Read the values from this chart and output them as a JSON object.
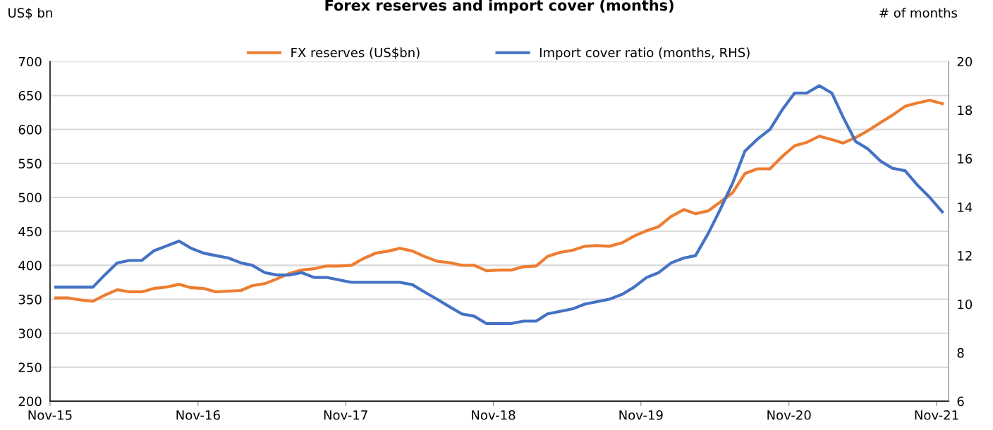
{
  "chart_data": {
    "type": "line",
    "title": "Forex reserves and import cover (months)",
    "ylabel": "US$ bn",
    "y2label": "# of months",
    "x": [
      "2015-11-15",
      "2015-12-15",
      "2016-01-15",
      "2016-02-15",
      "2016-03-15",
      "2016-04-15",
      "2016-05-15",
      "2016-06-15",
      "2016-07-15",
      "2016-08-15",
      "2016-09-15",
      "2016-10-15",
      "2016-11-15",
      "2016-12-15",
      "2017-01-15",
      "2017-02-15",
      "2017-03-15",
      "2017-04-15",
      "2017-05-15",
      "2017-06-15",
      "2017-07-15",
      "2017-08-15",
      "2017-09-15",
      "2017-10-15",
      "2017-11-15",
      "2017-12-15",
      "2018-01-15",
      "2018-02-15",
      "2018-03-15",
      "2018-04-15",
      "2018-05-15",
      "2018-06-15",
      "2018-07-15",
      "2018-08-15",
      "2018-09-15",
      "2018-10-15",
      "2018-11-15",
      "2018-12-15",
      "2019-01-15",
      "2019-02-15",
      "2019-03-15",
      "2019-04-15",
      "2019-05-15",
      "2019-06-15",
      "2019-07-15",
      "2019-08-15",
      "2019-09-15",
      "2019-10-15",
      "2019-11-15",
      "2019-12-15",
      "2020-01-15",
      "2020-02-15",
      "2020-03-15",
      "2020-04-15",
      "2020-05-15",
      "2020-06-15",
      "2020-07-15",
      "2020-08-15",
      "2020-09-15",
      "2020-10-15",
      "2020-11-15",
      "2020-12-15",
      "2021-01-15",
      "2021-02-15",
      "2021-03-15",
      "2021-04-15",
      "2021-05-15",
      "2021-06-15",
      "2021-07-15",
      "2021-08-15",
      "2021-09-15",
      "2021-10-15",
      "2021-11-15"
    ],
    "series": [
      {
        "name": "FX reserves (US$bn)",
        "color": "#ed7d31",
        "values": [
          352,
          352,
          349,
          347,
          356,
          364,
          361,
          361,
          366,
          368,
          372,
          367,
          366,
          361,
          362,
          363,
          370,
          373,
          380,
          388,
          393,
          395,
          399,
          399,
          400,
          410,
          418,
          421,
          425,
          421,
          413,
          406,
          404,
          400,
          400,
          392,
          393,
          393,
          398,
          399,
          413,
          419,
          422,
          428,
          429,
          428,
          433,
          443,
          451,
          457,
          472,
          482,
          476,
          480,
          493,
          507,
          535,
          542,
          542,
          560,
          576,
          581,
          590,
          585,
          580,
          588,
          598,
          610,
          621,
          634,
          639,
          643,
          638
        ]
      },
      {
        "name": "Import cover ratio (months, RHS)",
        "color": "#4472c4",
        "axis": "y2",
        "values": [
          10.7,
          10.7,
          10.7,
          10.7,
          11.2,
          11.7,
          11.8,
          11.8,
          12.2,
          12.4,
          12.6,
          12.3,
          12.1,
          12.0,
          11.9,
          11.7,
          11.6,
          11.3,
          11.2,
          11.2,
          11.3,
          11.1,
          11.1,
          11.0,
          10.9,
          10.9,
          10.9,
          10.9,
          10.9,
          10.8,
          10.5,
          10.2,
          9.9,
          9.6,
          9.5,
          9.2,
          9.2,
          9.2,
          9.3,
          9.3,
          9.6,
          9.7,
          9.8,
          10.0,
          10.1,
          10.2,
          10.4,
          10.7,
          11.1,
          11.3,
          11.7,
          11.9,
          12.0,
          12.9,
          13.9,
          15.0,
          16.3,
          16.8,
          17.2,
          18.0,
          18.7,
          18.7,
          19.0,
          18.7,
          17.7,
          16.7,
          16.4,
          15.9,
          15.6,
          15.5,
          14.9,
          14.4,
          13.8
        ]
      }
    ],
    "xlim": [
      "2015-11-01",
      "2021-12-01"
    ],
    "xticks": [
      {
        "value": "2015-11-01",
        "label": "Nov-15"
      },
      {
        "value": "2016-11-01",
        "label": "Nov-16"
      },
      {
        "value": "2017-11-01",
        "label": "Nov-17"
      },
      {
        "value": "2018-11-01",
        "label": "Nov-18"
      },
      {
        "value": "2019-11-01",
        "label": "Nov-19"
      },
      {
        "value": "2020-11-01",
        "label": "Nov-20"
      },
      {
        "value": "2021-11-01",
        "label": "Nov-21"
      }
    ],
    "ylim": [
      200,
      700
    ],
    "yticks": [
      200,
      250,
      300,
      350,
      400,
      450,
      500,
      550,
      600,
      650,
      700
    ],
    "y2lim": [
      6,
      20
    ],
    "y2ticks": [
      6,
      8,
      10,
      12,
      14,
      16,
      18,
      20
    ],
    "grid": "y",
    "legend": "top",
    "marker": "none",
    "line_style": "solid"
  }
}
